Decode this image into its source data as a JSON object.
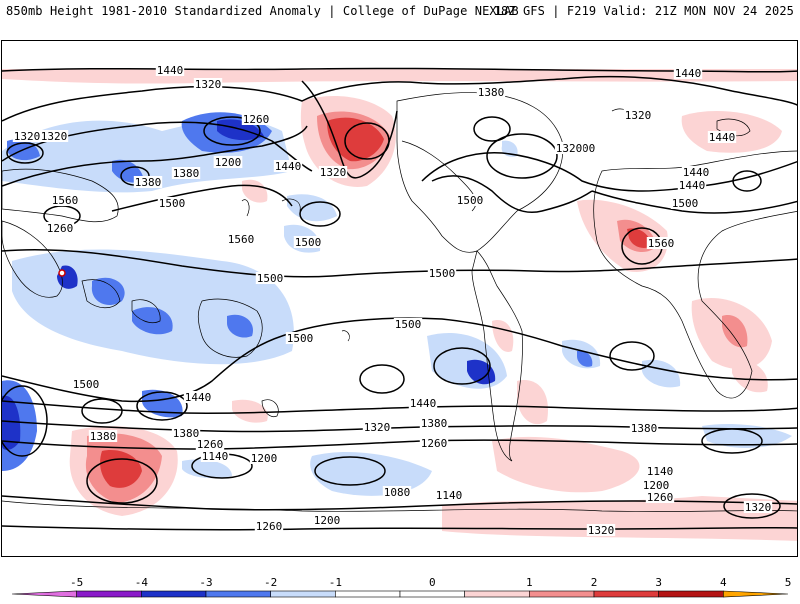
{
  "header": {
    "title_left": "850mb Height 1981-2010 Standardized Anomaly | College of DuPage NEXLAB",
    "title_right": "18Z GFS | F219 Valid: 21Z MON NOV 24 2025"
  },
  "map": {
    "projection": "cylindrical global, centered on Pacific",
    "contour_units": "dam (850mb geopotential height)",
    "contour_labels": [
      "1440",
      "1440",
      "1320",
      "1380",
      "1260",
      "1320",
      "1200",
      "1320",
      "1500",
      "1440",
      "1380",
      "1380",
      "1560",
      "1500",
      "1500",
      "1560",
      "1500",
      "1500",
      "1500",
      "1500",
      "1500",
      "1440",
      "1440",
      "1380",
      "1320",
      "1260",
      "1320",
      "1440",
      "1500",
      "1560",
      "1500",
      "1320",
      "1200",
      "1440",
      "1380",
      "1380",
      "1260",
      "1140",
      "1200",
      "1080",
      "1140",
      "1260",
      "1200",
      "1320",
      "1380",
      "1440",
      "1380",
      "1320",
      "1260",
      "1140",
      "1200",
      "1260",
      "1320"
    ],
    "anomaly_colors": {
      "neg5": "#e06ee0",
      "neg4": "#8a1ac9",
      "neg3": "#1e32c8",
      "neg2": "#4f78ee",
      "neg1": "#c8dcfa",
      "pos1": "#fcd4d4",
      "pos2": "#f38e8e",
      "pos3": "#de3c3c",
      "pos4": "#b41414",
      "pos5": "#ffa500"
    }
  },
  "colorbar": {
    "tick_labels": [
      "-5",
      "-4",
      "-3",
      "-2",
      "-1",
      "0",
      "1",
      "2",
      "3",
      "4",
      "5"
    ],
    "bins": [
      {
        "range": "<-5",
        "color": "#e06ee0"
      },
      {
        "range": "-5 to -4",
        "color": "#8a1ac9"
      },
      {
        "range": "-4 to -3",
        "color": "#1e32c8"
      },
      {
        "range": "-3 to -2",
        "color": "#4f78ee"
      },
      {
        "range": "-2 to -1",
        "color": "#c8dcfa"
      },
      {
        "range": "-1 to 0",
        "color": "#ffffff"
      },
      {
        "range": "0 to 1",
        "color": "#ffffff"
      },
      {
        "range": "1 to 2",
        "color": "#fcd4d4"
      },
      {
        "range": "2 to 3",
        "color": "#f38e8e"
      },
      {
        "range": "3 to 4",
        "color": "#de3c3c"
      },
      {
        "range": "4 to 5",
        "color": "#b41414"
      },
      {
        "range": ">5",
        "color": "#ffa500"
      }
    ]
  }
}
